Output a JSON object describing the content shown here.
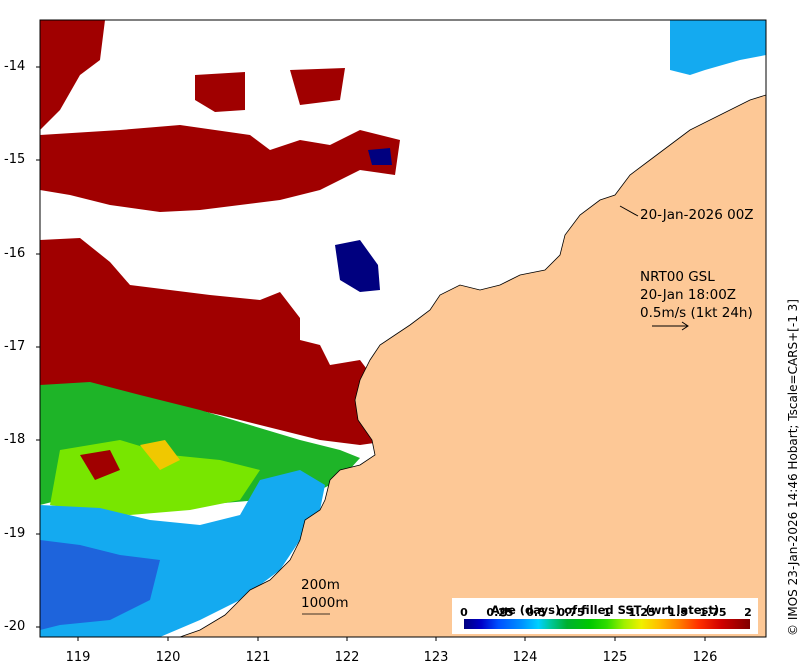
{
  "map": {
    "y_ticks": [
      "-14",
      "-15",
      "-16",
      "-17",
      "-18",
      "-19",
      "-20"
    ],
    "x_ticks": [
      "119",
      "120",
      "121",
      "122",
      "123",
      "124",
      "125",
      "126"
    ],
    "annotations": {
      "date_stamp": "20-Jan-2026 00Z",
      "wind_product": "NRT00 GSL",
      "wind_time": "20-Jan 18:00Z",
      "wind_scale": "0.5m/s (1kt 24h)",
      "isobath_200": "200m",
      "isobath_1000": "1000m"
    },
    "credit": "© IMOS 23-Jan-2026 14:46 Hobart; Tscale=CARS+[-1 3]",
    "colors": {
      "land": "#fdc896",
      "ocean_missing": "#ffffff",
      "age_oldest": "#a00000",
      "age_newest": "#00007f"
    },
    "legend": {
      "title": "Age (days) of filled SST (wrt latest)",
      "ticks": [
        "0",
        "0.25",
        "0.5",
        "0.75",
        "1",
        "1.25",
        "1.5",
        "1.75",
        "2"
      ]
    }
  }
}
